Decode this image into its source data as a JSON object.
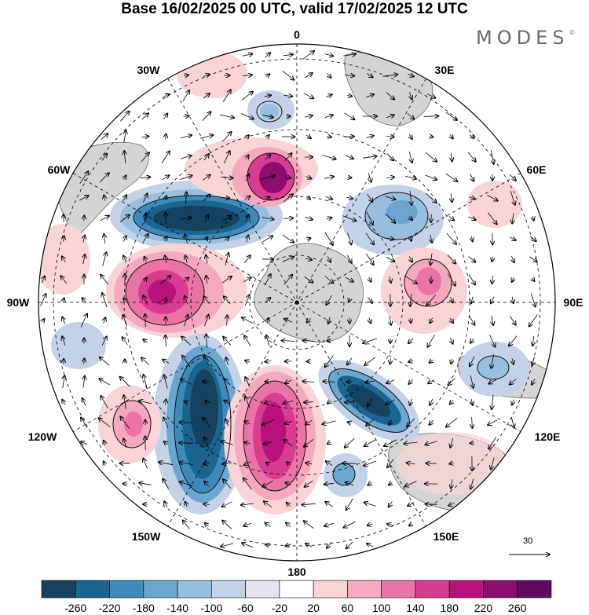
{
  "title": "Base 16/02/2025 00 UTC, valid 17/02/2025 12 UTC",
  "brand": "MODES",
  "brand_mark": "©",
  "longitude_labels": {
    "lon_0": "0",
    "lon_30e": "30E",
    "lon_60e": "60E",
    "lon_90e": "90E",
    "lon_120e": "120E",
    "lon_150e": "150E",
    "lon_180": "180",
    "lon_150w": "150W",
    "lon_120w": "120W",
    "lon_90w": "90W",
    "lon_60w": "60W",
    "lon_30w": "30W"
  },
  "reference_vector": {
    "label": "30"
  },
  "colorbar": {
    "ticks": [
      "-260",
      "-220",
      "-180",
      "-140",
      "-100",
      "-60",
      "-20",
      "20",
      "60",
      "100",
      "140",
      "180",
      "220",
      "260"
    ],
    "colors": [
      "#15435f",
      "#1d6591",
      "#3e8bbb",
      "#6aa6cf",
      "#97bedd",
      "#c3d2e7",
      "#e4e2ef",
      "#ffffff",
      "#f8d4d6",
      "#f4a9be",
      "#eb74a6",
      "#d93d92",
      "#b8137c",
      "#8b0d6e",
      "#5c0b5f"
    ]
  },
  "map_style": {
    "land_color": "#cccccc",
    "coast_color": "#555555",
    "grid_style": "dashed",
    "projection": "south polar stereographic"
  }
}
